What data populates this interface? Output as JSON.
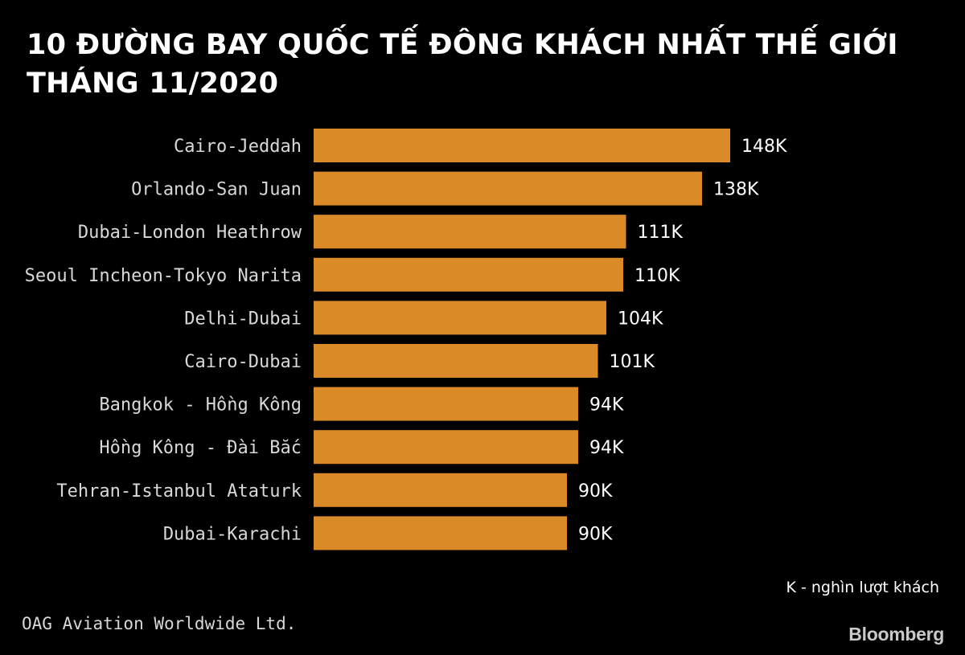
{
  "title": {
    "line1": "10 ĐƯỜNG BAY QUỐC TẾ ĐÔNG KHÁCH NHẤT THẾ GIỚI",
    "line2": "THÁNG 11/2020"
  },
  "chart_data": {
    "type": "bar",
    "orientation": "horizontal",
    "categories": [
      "Cairo-Jeddah",
      "Orlando-San Juan",
      "Dubai-London Heathrow",
      "Seoul Incheon-Tokyo Narita",
      "Delhi-Dubai",
      "Cairo-Dubai",
      "Bangkok - Hồng Kông",
      "Hồng Kông - Đài Bắc",
      "Tehran-Istanbul Ataturk",
      "Dubai-Karachi"
    ],
    "values": [
      148,
      138,
      111,
      110,
      104,
      101,
      94,
      94,
      90,
      90
    ],
    "value_labels": [
      "148K",
      "138K",
      "111K",
      "110K",
      "104K",
      "101K",
      "94K",
      "94K",
      "90K",
      "90K"
    ],
    "unit": "K - nghìn lượt khách",
    "bar_color": "#DA8A26",
    "grid": false,
    "xlim": [
      0,
      148
    ]
  },
  "source": "OAG Aviation Worldwide Ltd.",
  "brand": "Bloomberg"
}
